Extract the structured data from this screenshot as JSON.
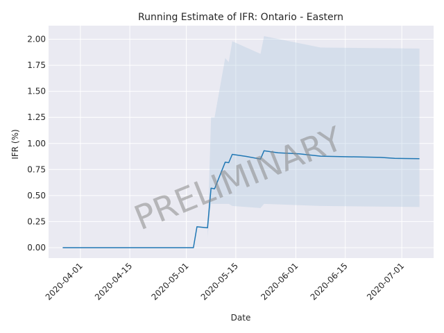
{
  "chart_data": {
    "type": "line",
    "title": "Running Estimate of IFR: Ontario - Eastern",
    "xlabel": "Date",
    "ylabel": "IFR (%)",
    "watermark": "PRELIMINARY",
    "xlim": [
      "2020-03-23",
      "2020-07-10"
    ],
    "ylim": [
      -0.1,
      2.13
    ],
    "grid": true,
    "x_ticks": [
      "2020-04-01",
      "2020-04-15",
      "2020-05-01",
      "2020-05-15",
      "2020-06-01",
      "2020-06-15",
      "2020-07-01"
    ],
    "y_ticks": [
      0.0,
      0.25,
      0.5,
      0.75,
      1.0,
      1.25,
      1.5,
      1.75,
      2.0
    ],
    "y_tick_labels": [
      "0.00",
      "0.25",
      "0.50",
      "0.75",
      "1.00",
      "1.25",
      "1.50",
      "1.75",
      "2.00"
    ],
    "colors": {
      "line": "#1f77b4",
      "band": "#b0c8e0",
      "plot_bg": "#eaeaf2",
      "grid": "#ffffff"
    },
    "series": [
      {
        "values": [
          [
            "2020-03-27",
            0.0
          ],
          [
            "2020-05-03",
            0.0
          ],
          [
            "2020-05-04",
            0.2
          ],
          [
            "2020-05-07",
            0.19
          ],
          [
            "2020-05-08",
            0.57
          ],
          [
            "2020-05-09",
            0.565
          ],
          [
            "2020-05-12",
            0.82
          ],
          [
            "2020-05-13",
            0.815
          ],
          [
            "2020-05-14",
            0.895
          ],
          [
            "2020-05-18",
            0.875
          ],
          [
            "2020-05-22",
            0.85
          ],
          [
            "2020-05-23",
            0.93
          ],
          [
            "2020-05-27",
            0.91
          ],
          [
            "2020-06-02",
            0.9
          ],
          [
            "2020-06-08",
            0.878
          ],
          [
            "2020-06-25",
            0.866
          ],
          [
            "2020-06-29",
            0.857
          ],
          [
            "2020-07-02",
            0.855
          ],
          [
            "2020-07-06",
            0.853
          ]
        ]
      }
    ],
    "band": {
      "upper": [
        [
          "2020-05-04",
          0.1
        ],
        [
          "2020-05-07",
          0.1
        ],
        [
          "2020-05-08",
          1.25
        ],
        [
          "2020-05-09",
          1.25
        ],
        [
          "2020-05-12",
          1.82
        ],
        [
          "2020-05-13",
          1.78
        ],
        [
          "2020-05-14",
          1.98
        ],
        [
          "2020-05-22",
          1.86
        ],
        [
          "2020-05-23",
          2.03
        ],
        [
          "2020-06-08",
          1.92
        ],
        [
          "2020-07-06",
          1.91
        ]
      ],
      "lower": [
        [
          "2020-05-04",
          0.1
        ],
        [
          "2020-05-07",
          0.1
        ],
        [
          "2020-05-08",
          0.42
        ],
        [
          "2020-05-09",
          0.42
        ],
        [
          "2020-05-12",
          0.42
        ],
        [
          "2020-05-13",
          0.42
        ],
        [
          "2020-05-14",
          0.4
        ],
        [
          "2020-05-22",
          0.38
        ],
        [
          "2020-05-23",
          0.42
        ],
        [
          "2020-06-08",
          0.4
        ],
        [
          "2020-07-06",
          0.39
        ]
      ]
    }
  }
}
